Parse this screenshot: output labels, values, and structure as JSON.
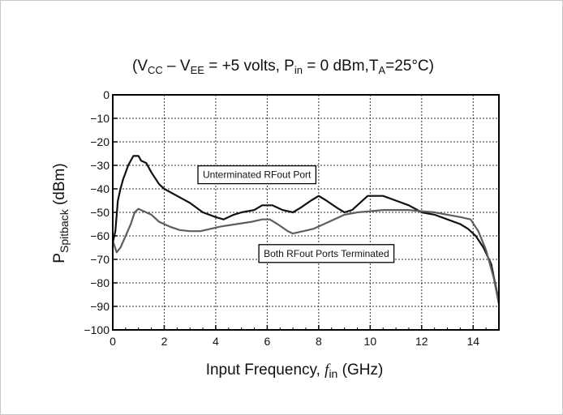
{
  "chart_data": {
    "type": "line",
    "title": {
      "open": "(V",
      "vcc_sub": "CC",
      "minus": " – V",
      "vee_sub": "EE",
      "mid": " = +5 volts, P",
      "pin_sub": "in",
      "mid2": " = 0 dBm,T",
      "ta_sub": "A",
      "close": "=25°C)"
    },
    "ylabel": {
      "main": "P",
      "sub": "Spitback",
      "unit": " (dBm)"
    },
    "xlabel": {
      "main": "Input Frequency, ",
      "var": "f",
      "sub": "in",
      "unit": " (GHz)"
    },
    "xlim": [
      0,
      15
    ],
    "ylim": [
      -100,
      0
    ],
    "x_ticks": [
      "0",
      "2",
      "4",
      "6",
      "8",
      "10",
      "12",
      "14"
    ],
    "y_ticks": [
      "0",
      "−10",
      "−20",
      "−30",
      "−40",
      "−50",
      "−60",
      "−70",
      "−80",
      "−90",
      "−100"
    ],
    "grid": true,
    "series": [
      {
        "name": "Unterminated RFout Port",
        "color": "#111111",
        "points": [
          [
            0,
            -63
          ],
          [
            0.1,
            -58
          ],
          [
            0.2,
            -45
          ],
          [
            0.3,
            -40
          ],
          [
            0.4,
            -36
          ],
          [
            0.5,
            -33
          ],
          [
            0.6,
            -30
          ],
          [
            0.8,
            -26
          ],
          [
            1.0,
            -26
          ],
          [
            1.1,
            -28
          ],
          [
            1.3,
            -29
          ],
          [
            1.5,
            -33
          ],
          [
            1.8,
            -38
          ],
          [
            2.0,
            -40
          ],
          [
            2.5,
            -43
          ],
          [
            3.0,
            -46
          ],
          [
            3.5,
            -50
          ],
          [
            4.0,
            -52
          ],
          [
            4.3,
            -53
          ],
          [
            4.7,
            -51
          ],
          [
            5.0,
            -50
          ],
          [
            5.5,
            -49
          ],
          [
            5.8,
            -47
          ],
          [
            6.2,
            -47
          ],
          [
            6.6,
            -49
          ],
          [
            7.0,
            -50
          ],
          [
            7.3,
            -48
          ],
          [
            7.7,
            -45
          ],
          [
            8.0,
            -43
          ],
          [
            8.3,
            -45
          ],
          [
            8.7,
            -48
          ],
          [
            9.0,
            -50
          ],
          [
            9.3,
            -49
          ],
          [
            9.6,
            -46
          ],
          [
            9.9,
            -43
          ],
          [
            10.5,
            -43
          ],
          [
            11.0,
            -45
          ],
          [
            11.5,
            -47
          ],
          [
            12.0,
            -50
          ],
          [
            12.5,
            -51
          ],
          [
            13.0,
            -53
          ],
          [
            13.5,
            -55
          ],
          [
            13.8,
            -57
          ],
          [
            14.1,
            -60
          ],
          [
            14.4,
            -65
          ],
          [
            14.7,
            -72
          ],
          [
            15.0,
            -88
          ]
        ]
      },
      {
        "name": "Both RFout Ports Terminated",
        "color": "#5e5e5e",
        "points": [
          [
            0,
            -62
          ],
          [
            0.15,
            -67
          ],
          [
            0.3,
            -65
          ],
          [
            0.5,
            -60
          ],
          [
            0.7,
            -55
          ],
          [
            0.85,
            -50
          ],
          [
            1.0,
            -48.5
          ],
          [
            1.2,
            -49.5
          ],
          [
            1.5,
            -51
          ],
          [
            1.8,
            -54
          ],
          [
            2.2,
            -56
          ],
          [
            2.6,
            -57.5
          ],
          [
            3.0,
            -58
          ],
          [
            3.4,
            -58
          ],
          [
            3.8,
            -57
          ],
          [
            4.2,
            -56
          ],
          [
            4.8,
            -55
          ],
          [
            5.4,
            -54
          ],
          [
            5.8,
            -53
          ],
          [
            6.1,
            -53
          ],
          [
            6.4,
            -55
          ],
          [
            6.8,
            -58
          ],
          [
            7.0,
            -59
          ],
          [
            7.4,
            -58
          ],
          [
            7.8,
            -57
          ],
          [
            8.2,
            -55
          ],
          [
            8.6,
            -53
          ],
          [
            9.0,
            -51
          ],
          [
            9.5,
            -50
          ],
          [
            10.0,
            -49.5
          ],
          [
            10.5,
            -49
          ],
          [
            11.0,
            -49
          ],
          [
            11.5,
            -49
          ],
          [
            12.0,
            -49.5
          ],
          [
            12.5,
            -50
          ],
          [
            13.0,
            -51
          ],
          [
            13.5,
            -52
          ],
          [
            13.9,
            -53
          ],
          [
            14.2,
            -58
          ],
          [
            14.5,
            -66
          ],
          [
            14.8,
            -78
          ],
          [
            15.0,
            -89
          ]
        ]
      }
    ],
    "annotations": [
      {
        "text": "Unterminated RFout Port",
        "x": 5.6,
        "y": -34
      },
      {
        "text": "Both RFout Ports Terminated",
        "x": 8.3,
        "y": -67.5
      }
    ]
  }
}
